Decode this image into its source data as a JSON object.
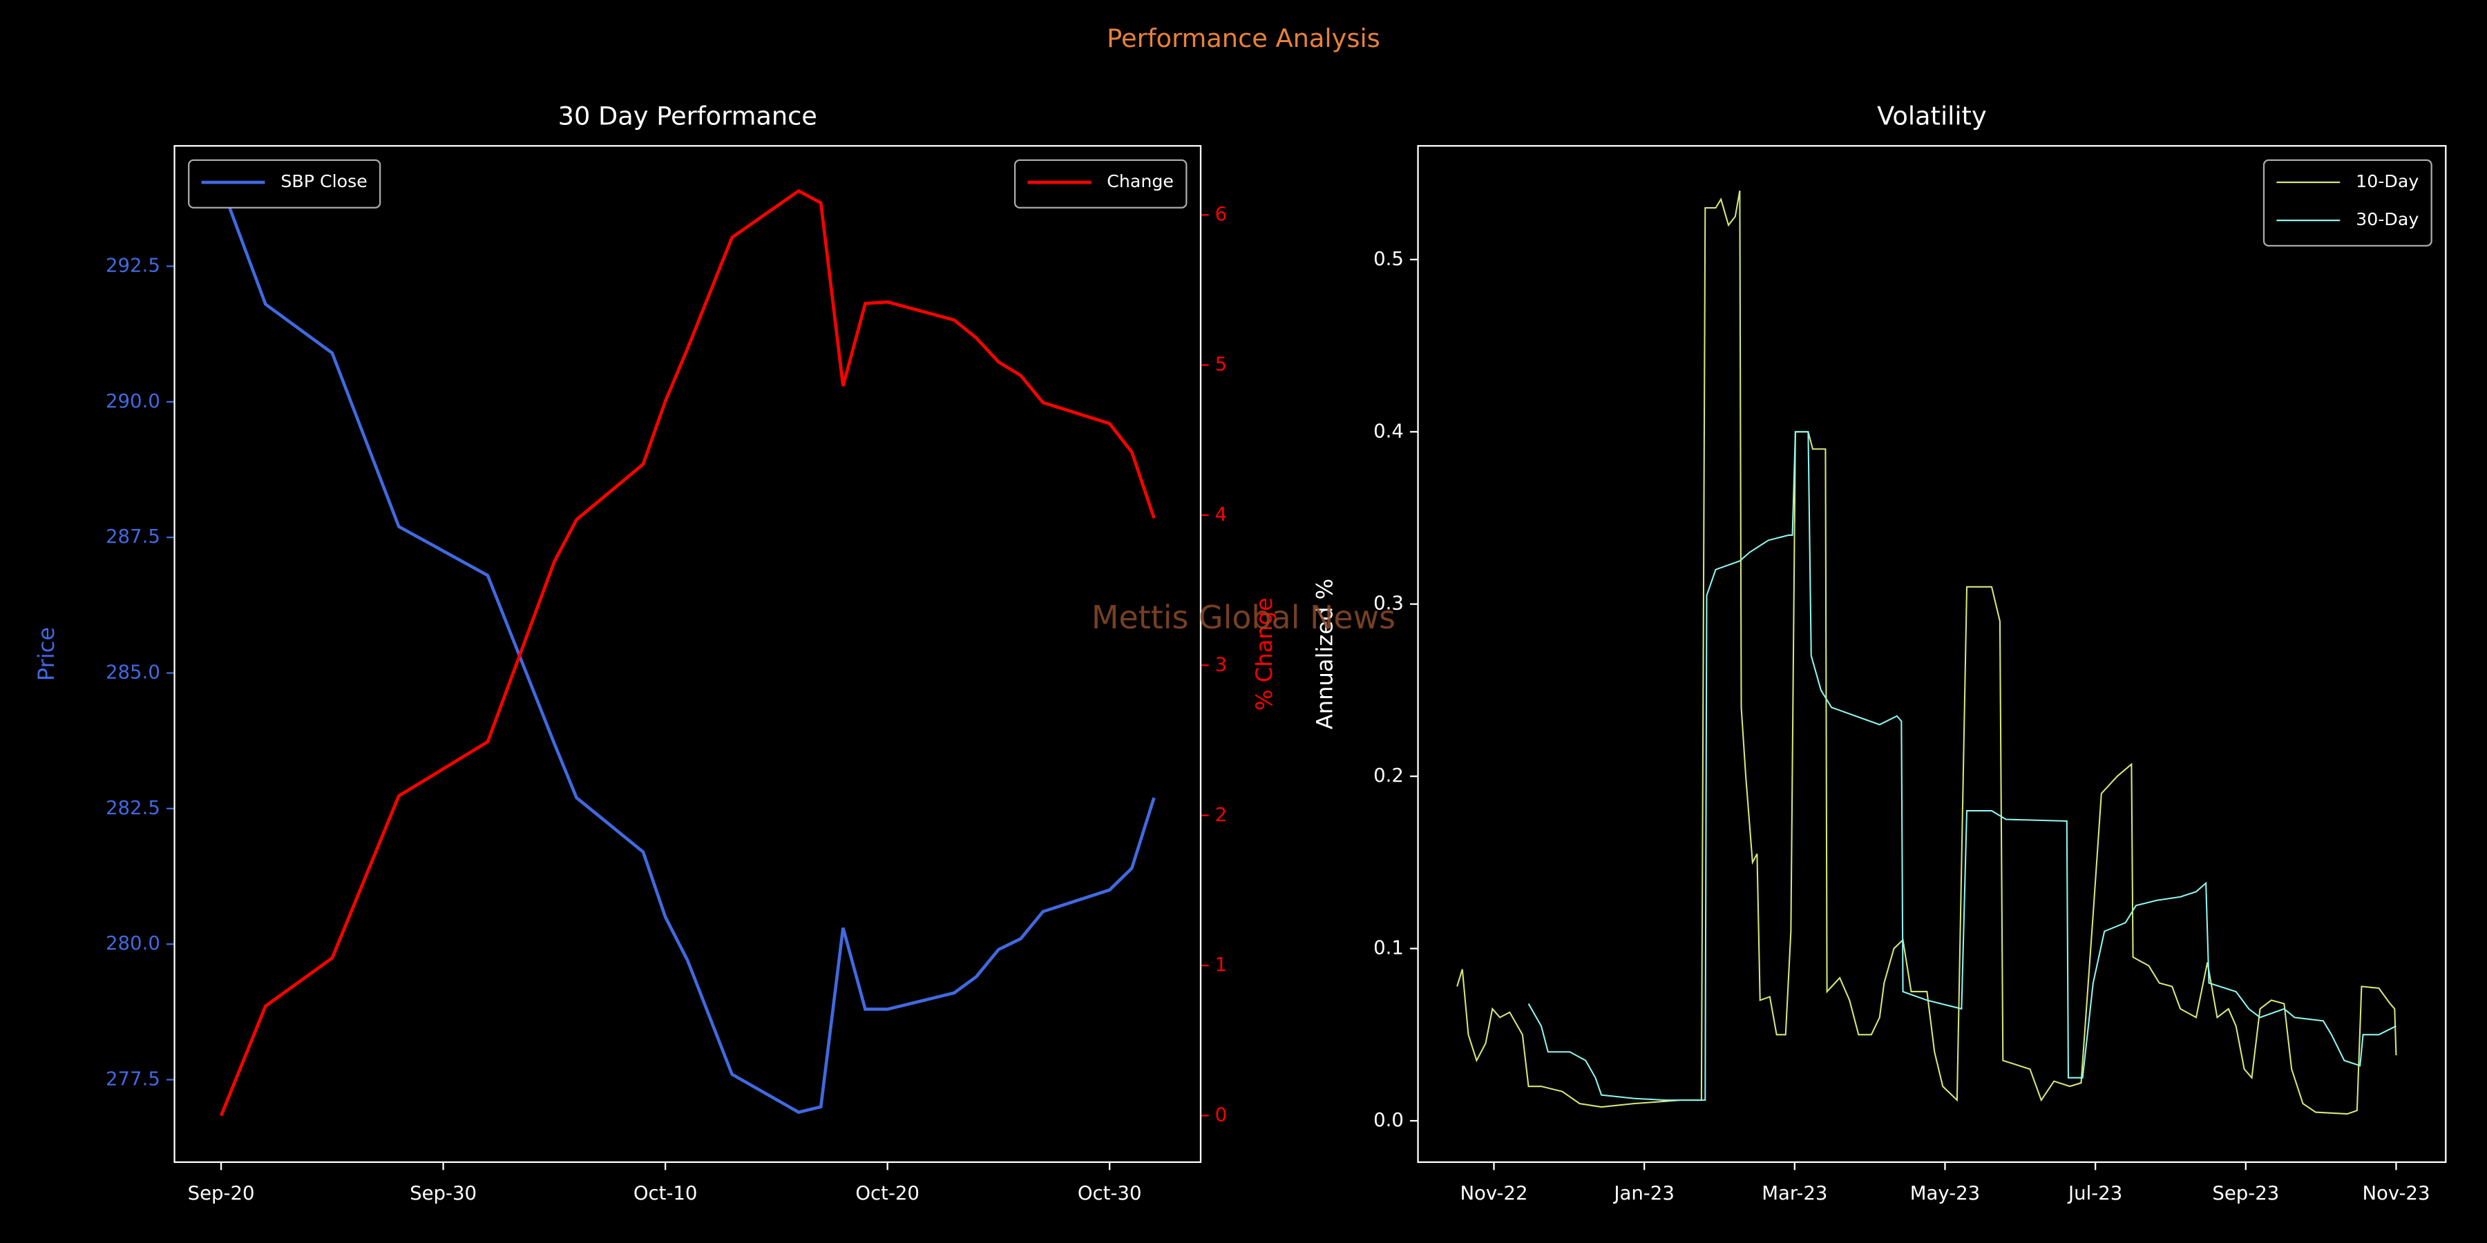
{
  "title": "Performance Analysis",
  "watermark": "Mettis Global News",
  "chart_data": [
    {
      "type": "line",
      "title": "30 Day Performance",
      "ylabel": "Price",
      "y2label": "% Change",
      "x": [
        "Sep-20",
        "Sep-22",
        "Sep-25",
        "Sep-28",
        "Oct-02",
        "Oct-05",
        "Oct-06",
        "Oct-09",
        "Oct-10",
        "Oct-11",
        "Oct-13",
        "Oct-16",
        "Oct-17",
        "Oct-18",
        "Oct-19",
        "Oct-20",
        "Oct-23",
        "Oct-24",
        "Oct-25",
        "Oct-26",
        "Oct-27",
        "Oct-30",
        "Oct-31",
        "Nov-01"
      ],
      "xticks": [
        "Sep-20",
        "Sep-30",
        "Oct-10",
        "Oct-20",
        "Oct-30"
      ],
      "ylim": [
        275.98,
        294.72
      ],
      "yticks": [
        277.5,
        {
          "value": 280,
          "label": "280.0"
        },
        282.5,
        {
          "value": 285,
          "label": "285.0"
        },
        287.5,
        {
          "value": 290,
          "label": "290.0"
        },
        292.5
      ],
      "y2lim": [
        -0.31,
        6.46
      ],
      "y2ticks": [
        0,
        1,
        2,
        3,
        4,
        5,
        6
      ],
      "series": [
        {
          "name": "SBP Close",
          "color": "#4169e1",
          "legend": "upper left",
          "values": [
            294.0,
            291.8,
            290.9,
            287.7,
            286.8,
            283.7,
            282.7,
            281.7,
            280.5,
            279.7,
            277.6,
            276.9,
            277.0,
            280.3,
            278.8,
            278.8,
            279.1,
            279.4,
            279.9,
            280.1,
            280.6,
            281.0,
            281.4,
            282.7
          ]
        },
        {
          "name": "Change",
          "color": "#ff0000",
          "axis": "y2",
          "legend": "upper right",
          "values": [
            0,
            0.73,
            1.05,
            2.13,
            2.49,
            3.69,
            3.97,
            4.34,
            4.76,
            5.11,
            5.85,
            6.16,
            6.08,
            4.86,
            5.41,
            5.42,
            5.3,
            5.18,
            5.02,
            4.93,
            4.75,
            4.61,
            4.42,
            3.98
          ]
        }
      ]
    },
    {
      "type": "line",
      "title": "Volatility",
      "ylabel": "Annualized %",
      "legend": "upper right",
      "xlim": [
        -1.01,
        12.66
      ],
      "xticks": [
        {
          "value": 0,
          "label": "Nov-22"
        },
        {
          "value": 2,
          "label": "Jan-23"
        },
        {
          "value": 4,
          "label": "Mar-23"
        },
        {
          "value": 6,
          "label": "May-23"
        },
        {
          "value": 8,
          "label": "Jul-23"
        },
        {
          "value": 10,
          "label": "Sep-23"
        },
        {
          "value": 12,
          "label": "Nov-23"
        }
      ],
      "ylim": [
        -0.024,
        0.566
      ],
      "yticks": [
        {
          "value": 0,
          "label": "0.0"
        },
        0.1,
        0.2,
        0.3,
        0.4,
        0.5
      ],
      "series": [
        {
          "name": "10-Day",
          "color": "#d4e77a",
          "x": [
            -0.49,
            -0.42,
            -0.34,
            -0.23,
            -0.11,
            -0.02,
            0.08,
            0.21,
            0.38,
            0.46,
            0.63,
            0.91,
            1.14,
            1.43,
            1.86,
            2.49,
            2.76,
            2.81,
            2.95,
            3.02,
            3.12,
            3.21,
            3.27,
            3.29,
            3.35,
            3.44,
            3.5,
            3.54,
            3.67,
            3.76,
            3.88,
            3.95,
            4.01,
            4.18,
            4.24,
            4.41,
            4.43,
            4.6,
            4.73,
            4.85,
            5.02,
            5.13,
            5.19,
            5.32,
            5.44,
            5.55,
            5.76,
            5.86,
            5.97,
            6.16,
            6.29,
            6.62,
            6.73,
            6.77,
            7.13,
            7.28,
            7.45,
            7.66,
            7.81,
            7.97,
            8.08,
            8.29,
            8.48,
            8.5,
            8.71,
            8.85,
            9.02,
            9.13,
            9.34,
            9.49,
            9.62,
            9.77,
            9.87,
            9.98,
            10.08,
            10.19,
            10.34,
            10.51,
            10.61,
            10.76,
            10.93,
            11.35,
            11.48,
            11.54,
            11.77,
            11.92,
            11.98,
            12.0
          ],
          "values": [
            0.078,
            0.088,
            0.05,
            0.035,
            0.045,
            0.065,
            0.06,
            0.063,
            0.05,
            0.02,
            0.02,
            0.017,
            0.01,
            0.008,
            0.01,
            0.012,
            0.012,
            0.53,
            0.53,
            0.535,
            0.52,
            0.525,
            0.54,
            0.24,
            0.2,
            0.15,
            0.155,
            0.07,
            0.072,
            0.05,
            0.05,
            0.11,
            0.4,
            0.4,
            0.39,
            0.39,
            0.075,
            0.083,
            0.07,
            0.05,
            0.05,
            0.06,
            0.08,
            0.1,
            0.105,
            0.075,
            0.075,
            0.04,
            0.02,
            0.012,
            0.31,
            0.31,
            0.29,
            0.035,
            0.03,
            0.012,
            0.023,
            0.02,
            0.022,
            0.12,
            0.19,
            0.2,
            0.207,
            0.095,
            0.09,
            0.08,
            0.078,
            0.065,
            0.06,
            0.092,
            0.06,
            0.065,
            0.055,
            0.03,
            0.025,
            0.065,
            0.07,
            0.068,
            0.03,
            0.01,
            0.005,
            0.004,
            0.006,
            0.078,
            0.077,
            0.068,
            0.065,
            0.038
          ]
        },
        {
          "name": "30-Day",
          "color": "#8ff5f0",
          "x": [
            0.46,
            0.63,
            0.72,
            1.01,
            1.22,
            1.35,
            1.43,
            1.86,
            2.28,
            2.81,
            2.83,
            2.95,
            3.27,
            3.4,
            3.65,
            3.92,
            3.97,
            4.01,
            4.18,
            4.22,
            4.35,
            4.49,
            4.81,
            5.13,
            5.36,
            5.42,
            5.44,
            5.76,
            6.22,
            6.29,
            6.62,
            6.81,
            7.62,
            7.64,
            7.83,
            7.97,
            8.12,
            8.4,
            8.54,
            8.82,
            9.13,
            9.34,
            9.47,
            9.51,
            9.87,
            10.04,
            10.19,
            10.51,
            10.65,
            11.03,
            11.14,
            11.31,
            11.52,
            11.56,
            11.77,
            12.0
          ],
          "values": [
            0.068,
            0.055,
            0.04,
            0.04,
            0.035,
            0.025,
            0.015,
            0.013,
            0.012,
            0.012,
            0.305,
            0.32,
            0.325,
            0.33,
            0.337,
            0.34,
            0.34,
            0.4,
            0.4,
            0.27,
            0.25,
            0.24,
            0.235,
            0.23,
            0.235,
            0.232,
            0.075,
            0.07,
            0.065,
            0.18,
            0.18,
            0.175,
            0.174,
            0.025,
            0.025,
            0.08,
            0.11,
            0.115,
            0.125,
            0.128,
            0.13,
            0.133,
            0.138,
            0.08,
            0.075,
            0.065,
            0.06,
            0.065,
            0.06,
            0.058,
            0.05,
            0.035,
            0.032,
            0.05,
            0.05,
            0.055
          ]
        }
      ]
    }
  ]
}
